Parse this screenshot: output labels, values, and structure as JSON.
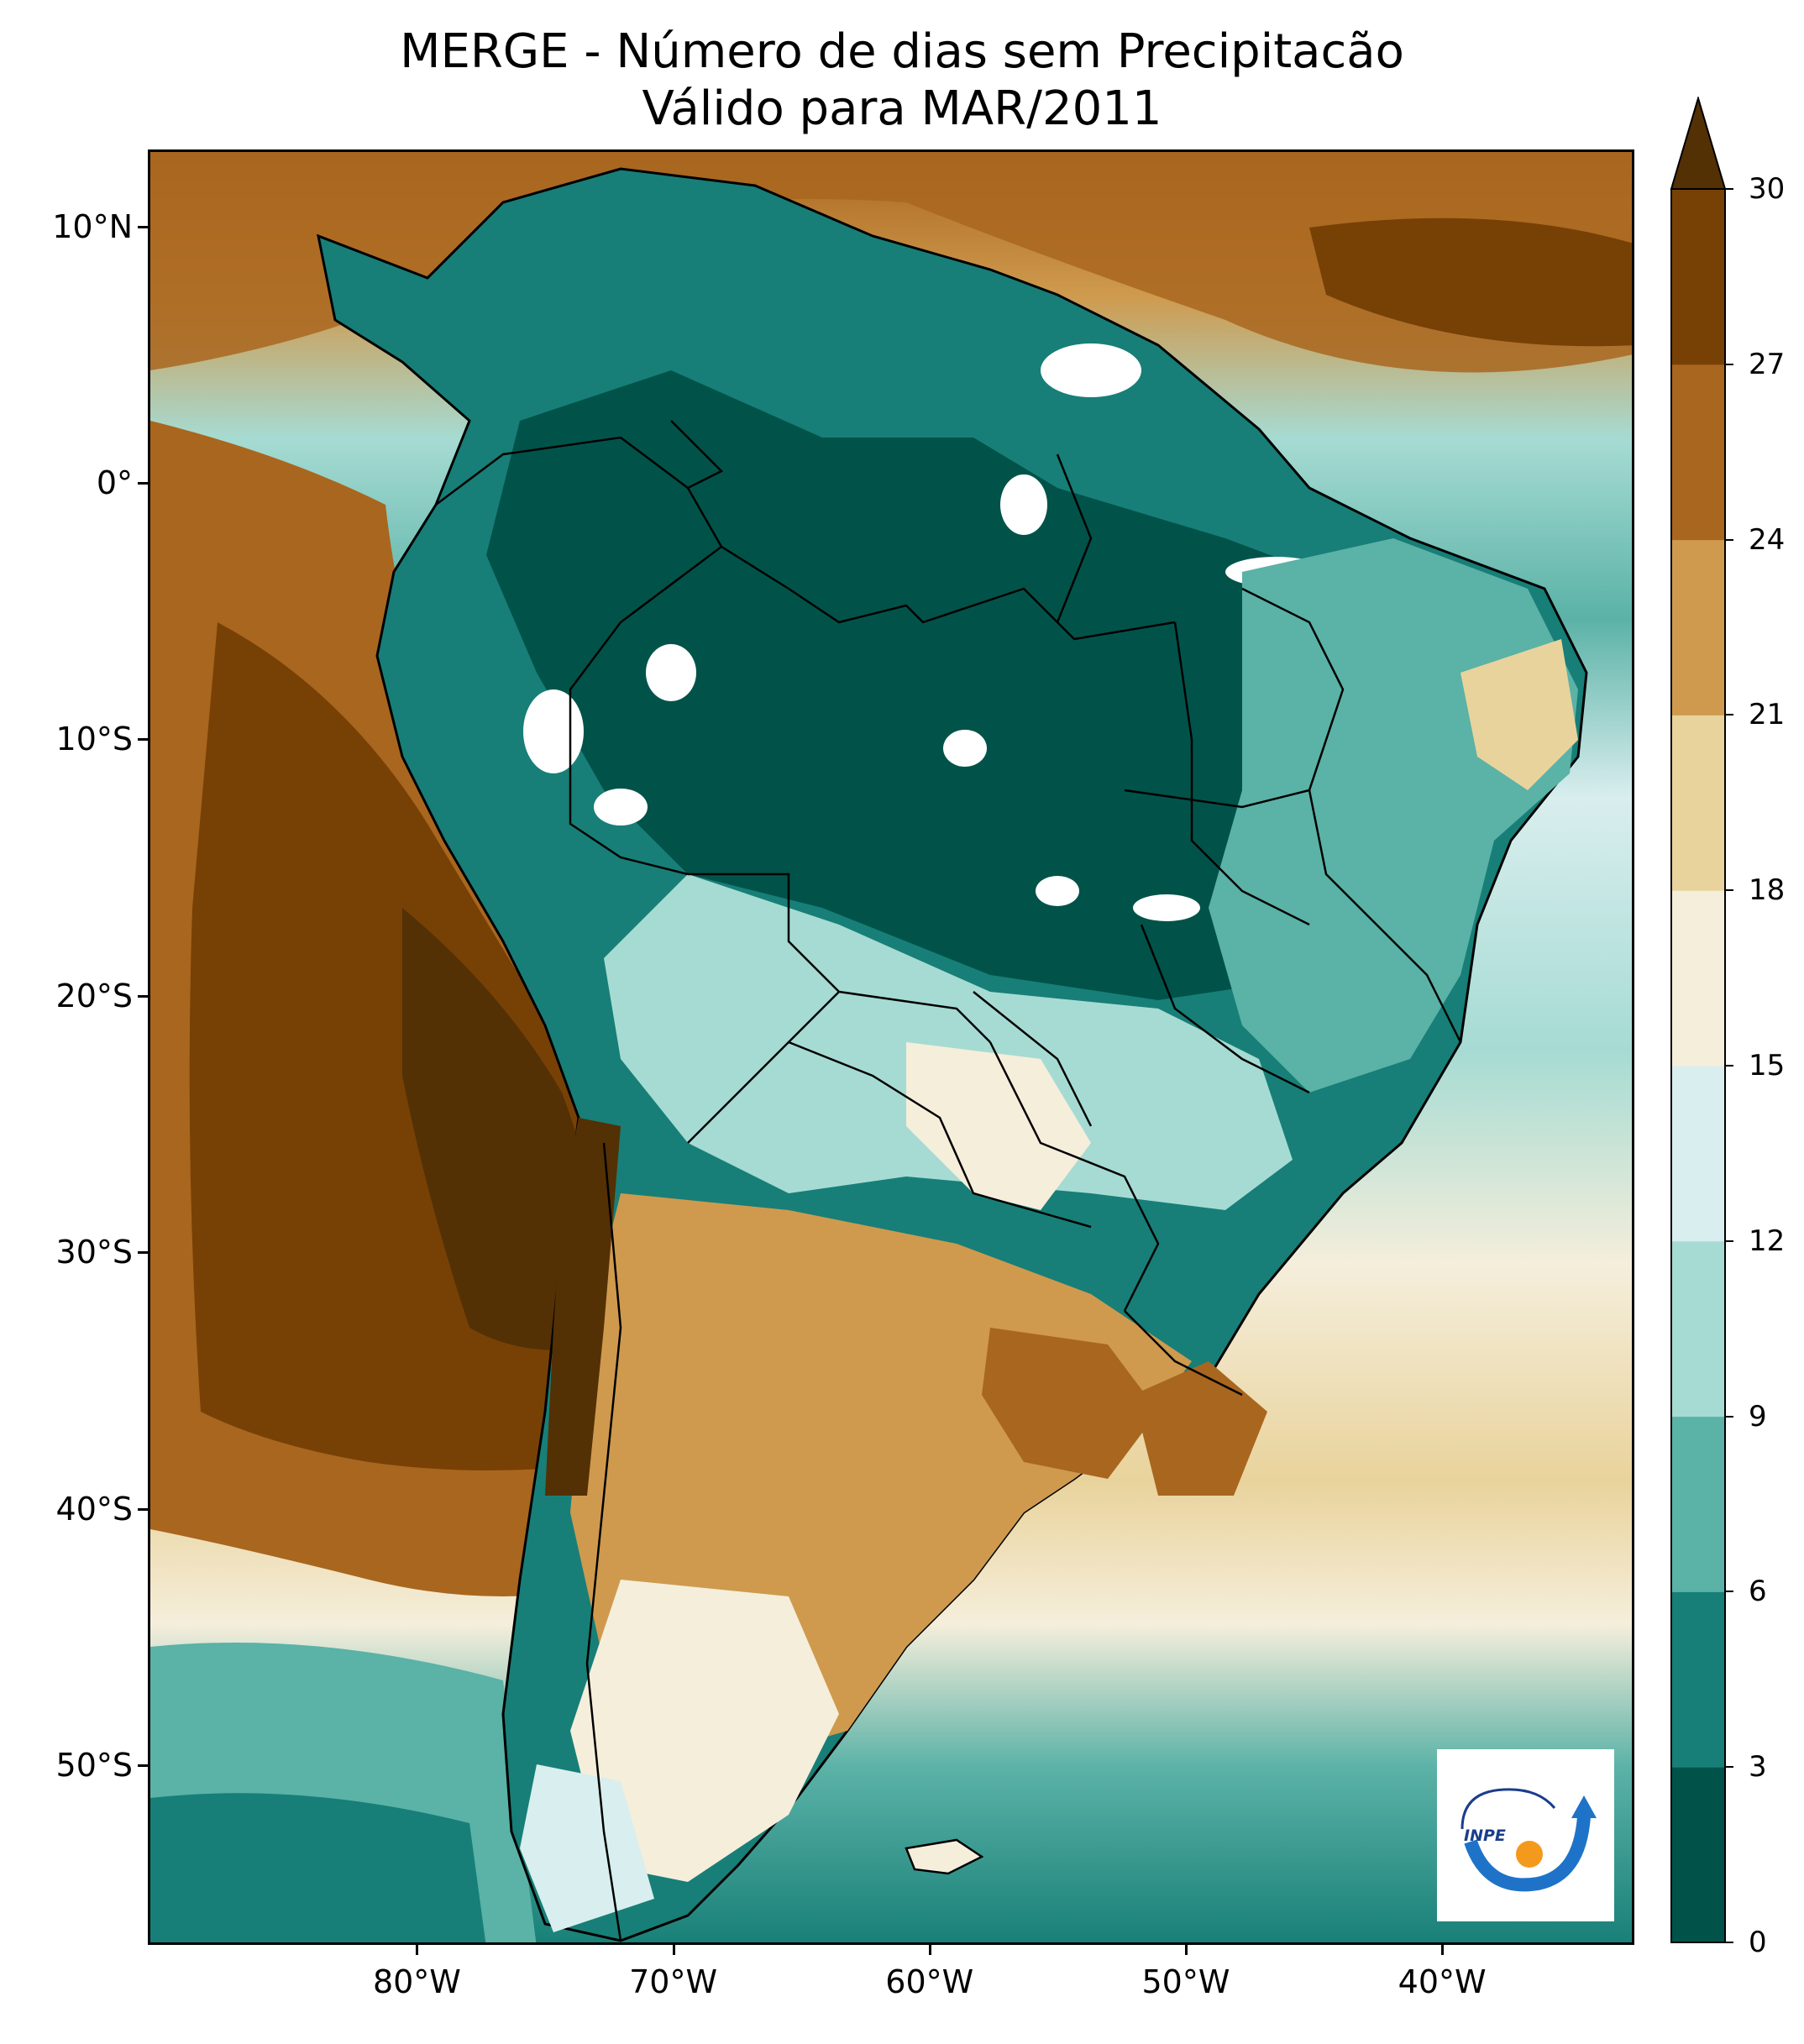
{
  "title": {
    "line1": "MERGE - Número de dias sem Precipitacão",
    "line2": "Válido para MAR/2011"
  },
  "axes": {
    "lat_labels": [
      "10°N",
      "0°",
      "10°S",
      "20°S",
      "30°S",
      "40°S",
      "50°S"
    ],
    "lat_values": [
      10,
      0,
      -10,
      -20,
      -30,
      -40,
      -50
    ],
    "lon_labels": [
      "80°W",
      "70°W",
      "60°W",
      "50°W",
      "40°W"
    ],
    "lon_values": [
      -80,
      -70,
      -60,
      -50,
      -40
    ],
    "lon_range": [
      -90.5,
      -32.5
    ],
    "lat_range": [
      -57,
      13
    ]
  },
  "colorbar": {
    "labels": [
      "0",
      "3",
      "6",
      "9",
      "12",
      "15",
      "18",
      "21",
      "24",
      "27",
      "30"
    ],
    "levels": [
      0,
      3,
      6,
      9,
      12,
      15,
      18,
      21,
      24,
      27,
      30
    ],
    "colors": [
      "#01534a",
      "#177f77",
      "#5bb2a7",
      "#a6dbd3",
      "#d9eeee",
      "#f5eedb",
      "#e9d39c",
      "#cf9a4e",
      "#a9661e",
      "#774106",
      "#543005"
    ],
    "extend": "max"
  },
  "logo": {
    "text": "INPE"
  }
}
